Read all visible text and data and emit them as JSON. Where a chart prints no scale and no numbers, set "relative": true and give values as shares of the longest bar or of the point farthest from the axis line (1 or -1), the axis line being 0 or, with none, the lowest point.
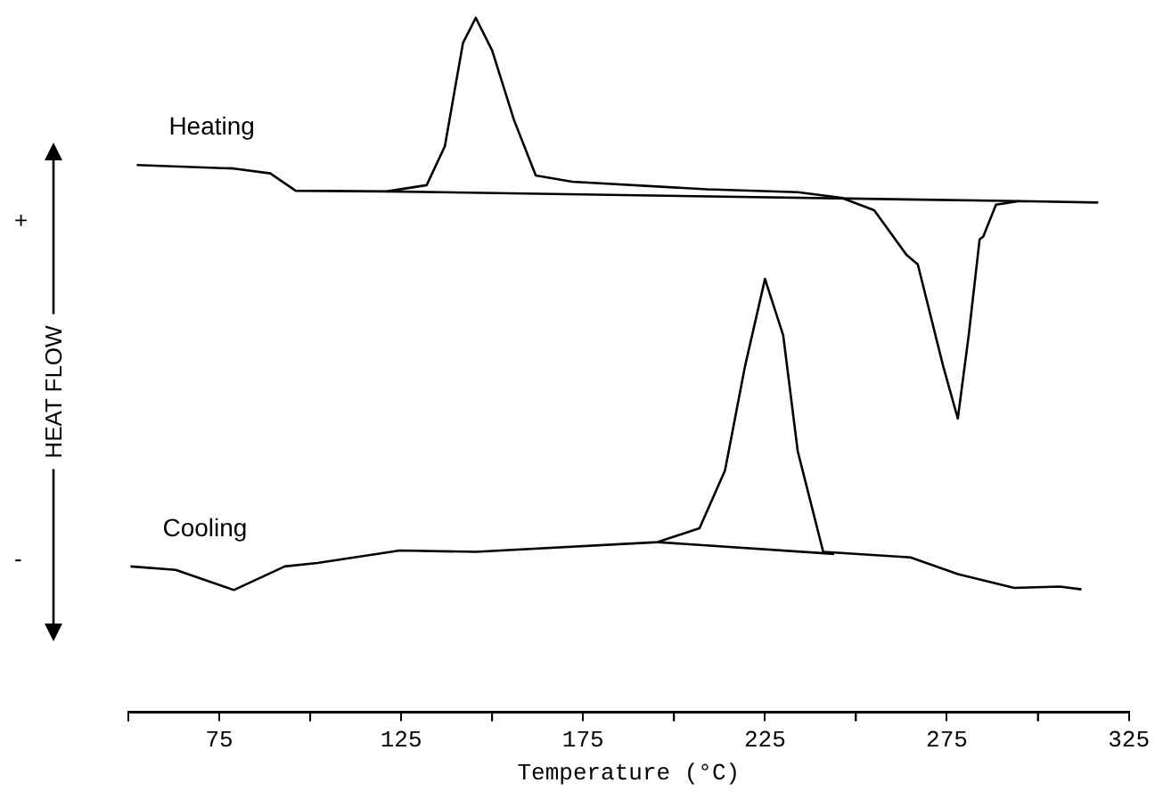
{
  "chart_data": {
    "type": "line",
    "relative": true,
    "xlabel": "Temperature (°C)",
    "ylabel": "HEAT FLOW",
    "annotations": [
      "+",
      "-"
    ],
    "xlim": [
      50,
      325
    ],
    "xticks": [
      {
        "value": 50,
        "label": null
      },
      75,
      {
        "value": 100,
        "label": null
      },
      125,
      {
        "value": 150,
        "label": null
      },
      175,
      {
        "value": 200,
        "label": null
      },
      225,
      {
        "value": 250,
        "label": null
      },
      275,
      {
        "value": 300,
        "label": null
      },
      325
    ],
    "grid": false,
    "legend": false,
    "marker": "none",
    "line_style": "solid",
    "series": [
      {
        "name": "Heating",
        "color": "#000000",
        "x": [
          52.3,
          79,
          89,
          96,
          121,
          132,
          137,
          142,
          145.5,
          150,
          156,
          162,
          172,
          209,
          234,
          246,
          255,
          264,
          267,
          274,
          278,
          281,
          284,
          285,
          288.5,
          295,
          316.6
        ],
        "values": [
          0.788,
          0.783,
          0.776,
          0.751,
          0.75,
          0.759,
          0.815,
          0.964,
          1,
          0.953,
          0.853,
          0.773,
          0.764,
          0.753,
          0.749,
          0.741,
          0.723,
          0.658,
          0.645,
          0.498,
          0.423,
          0.543,
          0.681,
          0.685,
          0.731,
          0.736,
          0.734
        ]
      },
      {
        "color": "#000000",
        "x": [
          121,
          295
        ],
        "values": [
          0.75,
          0.736
        ]
      },
      {
        "name": "Cooling",
        "color": "#000000",
        "x": [
          50.6,
          63,
          79,
          93,
          102,
          124.6,
          145.5,
          195.5,
          207,
          214,
          219.5,
          225,
          230,
          234,
          241,
          265,
          278,
          293.5,
          306,
          312
        ],
        "values": [
          0.21,
          0.205,
          0.176,
          0.21,
          0.215,
          0.233,
          0.231,
          0.245,
          0.265,
          0.348,
          0.498,
          0.624,
          0.543,
          0.376,
          0.231,
          0.223,
          0.199,
          0.179,
          0.181,
          0.177
        ]
      },
      {
        "color": "#000000",
        "x": [
          195.5,
          244
        ],
        "values": [
          0.245,
          0.228
        ]
      }
    ]
  }
}
